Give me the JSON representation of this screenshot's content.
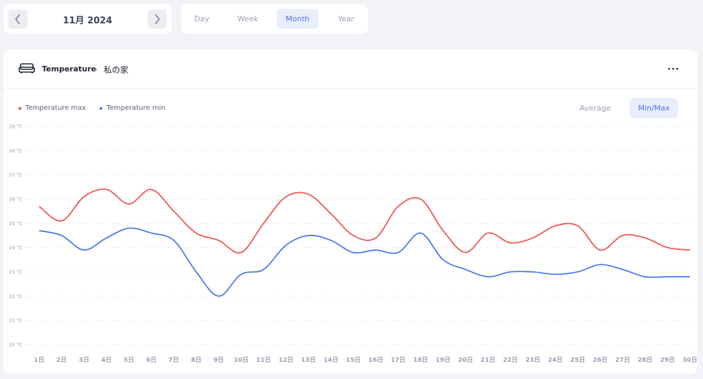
{
  "date_nav": {
    "label": "11月 2024",
    "prev_icon": "chevron-left-icon",
    "next_icon": "chevron-right-icon"
  },
  "range_tabs": [
    {
      "label": "Day",
      "active": false
    },
    {
      "label": "Week",
      "active": false
    },
    {
      "label": "Month",
      "active": true
    },
    {
      "label": "Year",
      "active": false
    }
  ],
  "card": {
    "icon": "sofa-icon",
    "title": "Temperature",
    "separator": "-",
    "subtitle": "私の家",
    "menu_icon": "more-horizontal-icon",
    "menu_label": "···"
  },
  "modes": [
    {
      "label": "Average",
      "active": false
    },
    {
      "label": "Min/Max",
      "active": true
    }
  ],
  "chart_data": {
    "type": "line",
    "x": [
      "1日",
      "2日",
      "3日",
      "4日",
      "5日",
      "6日",
      "7日",
      "8日",
      "9日",
      "10日",
      "11日",
      "12日",
      "13日",
      "14日",
      "15日",
      "16日",
      "17日",
      "18日",
      "19日",
      "20日",
      "21日",
      "22日",
      "23日",
      "24日",
      "25日",
      "26日",
      "27日",
      "28日",
      "29日",
      "30日"
    ],
    "y_ticks": [
      "29 °C",
      "28 °C",
      "27 °C",
      "26 °C",
      "25 °C",
      "24 °C",
      "23 °C",
      "22 °C",
      "21 °C",
      "20 °C"
    ],
    "ylim": [
      20,
      29
    ],
    "grid": true,
    "legend_position": "top-left",
    "series": [
      {
        "name": "Temperature max",
        "color": "#ef5350",
        "values": [
          25.7,
          25.1,
          26.1,
          26.4,
          25.8,
          26.4,
          25.5,
          24.6,
          24.3,
          23.8,
          25.0,
          26.1,
          26.2,
          25.4,
          24.5,
          24.4,
          25.7,
          26.0,
          24.7,
          23.8,
          24.6,
          24.2,
          24.4,
          24.9,
          24.9,
          23.9,
          24.5,
          24.4,
          24.0,
          23.9
        ]
      },
      {
        "name": "Temperature min",
        "color": "#4a78e8",
        "values": [
          24.7,
          24.5,
          23.9,
          24.4,
          24.8,
          24.6,
          24.3,
          23.0,
          22.0,
          22.9,
          23.1,
          24.1,
          24.5,
          24.3,
          23.8,
          23.9,
          23.8,
          24.6,
          23.5,
          23.1,
          22.8,
          23.0,
          23.0,
          22.9,
          23.0,
          23.3,
          23.1,
          22.8,
          22.8,
          22.8
        ]
      }
    ]
  }
}
